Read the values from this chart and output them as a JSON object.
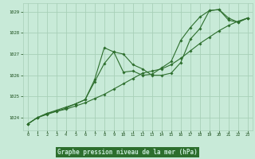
{
  "background_color": "#c8ead8",
  "grid_color": "#a8d0b8",
  "line_color": "#2d6e2d",
  "marker_color": "#2d6e2d",
  "title": "Graphe pression niveau de la mer (hPa)",
  "title_color": "#1a4d1a",
  "title_bg": "#2d6e2d",
  "title_text_color": "#c8ead8",
  "xlim": [
    -0.5,
    23.5
  ],
  "ylim": [
    1023.4,
    1029.4
  ],
  "yticks": [
    1024,
    1025,
    1026,
    1027,
    1028,
    1029
  ],
  "xticks": [
    0,
    1,
    2,
    3,
    4,
    5,
    6,
    7,
    8,
    9,
    10,
    11,
    12,
    13,
    14,
    15,
    16,
    17,
    18,
    19,
    20,
    21,
    22,
    23
  ],
  "line1_x": [
    0,
    1,
    2,
    3,
    4,
    5,
    6,
    7,
    8,
    9,
    10,
    11,
    12,
    13,
    14,
    15,
    16,
    17,
    18,
    19,
    20,
    21,
    22,
    23
  ],
  "line1_y": [
    1023.7,
    1024.0,
    1024.2,
    1024.3,
    1024.4,
    1024.55,
    1024.7,
    1024.9,
    1025.1,
    1025.35,
    1025.6,
    1025.85,
    1026.1,
    1026.2,
    1026.3,
    1026.5,
    1026.8,
    1027.15,
    1027.5,
    1027.8,
    1028.1,
    1028.35,
    1028.55,
    1028.7
  ],
  "line2_x": [
    0,
    1,
    2,
    3,
    4,
    5,
    6,
    7,
    8,
    9,
    10,
    11,
    12,
    13,
    14,
    15,
    16,
    17,
    18,
    19,
    20,
    21,
    22,
    23
  ],
  "line2_y": [
    1023.7,
    1024.0,
    1024.2,
    1024.35,
    1024.5,
    1024.65,
    1024.85,
    1025.8,
    1027.3,
    1027.1,
    1027.0,
    1026.5,
    1026.3,
    1026.0,
    1026.0,
    1026.1,
    1026.6,
    1027.7,
    1028.2,
    1029.05,
    1029.1,
    1028.7,
    1028.5,
    1028.7
  ],
  "line3_x": [
    0,
    1,
    2,
    3,
    4,
    5,
    6,
    7,
    8,
    9,
    10,
    11,
    12,
    13,
    14,
    15,
    16,
    17,
    18,
    19,
    20,
    21,
    22,
    23
  ],
  "line3_y": [
    1023.7,
    1024.0,
    1024.15,
    1024.3,
    1024.45,
    1024.65,
    1024.85,
    1025.7,
    1026.55,
    1027.1,
    1026.15,
    1026.2,
    1026.0,
    1026.05,
    1026.35,
    1026.65,
    1027.65,
    1028.25,
    1028.75,
    1029.05,
    1029.1,
    1028.6,
    1028.5,
    1028.7
  ]
}
